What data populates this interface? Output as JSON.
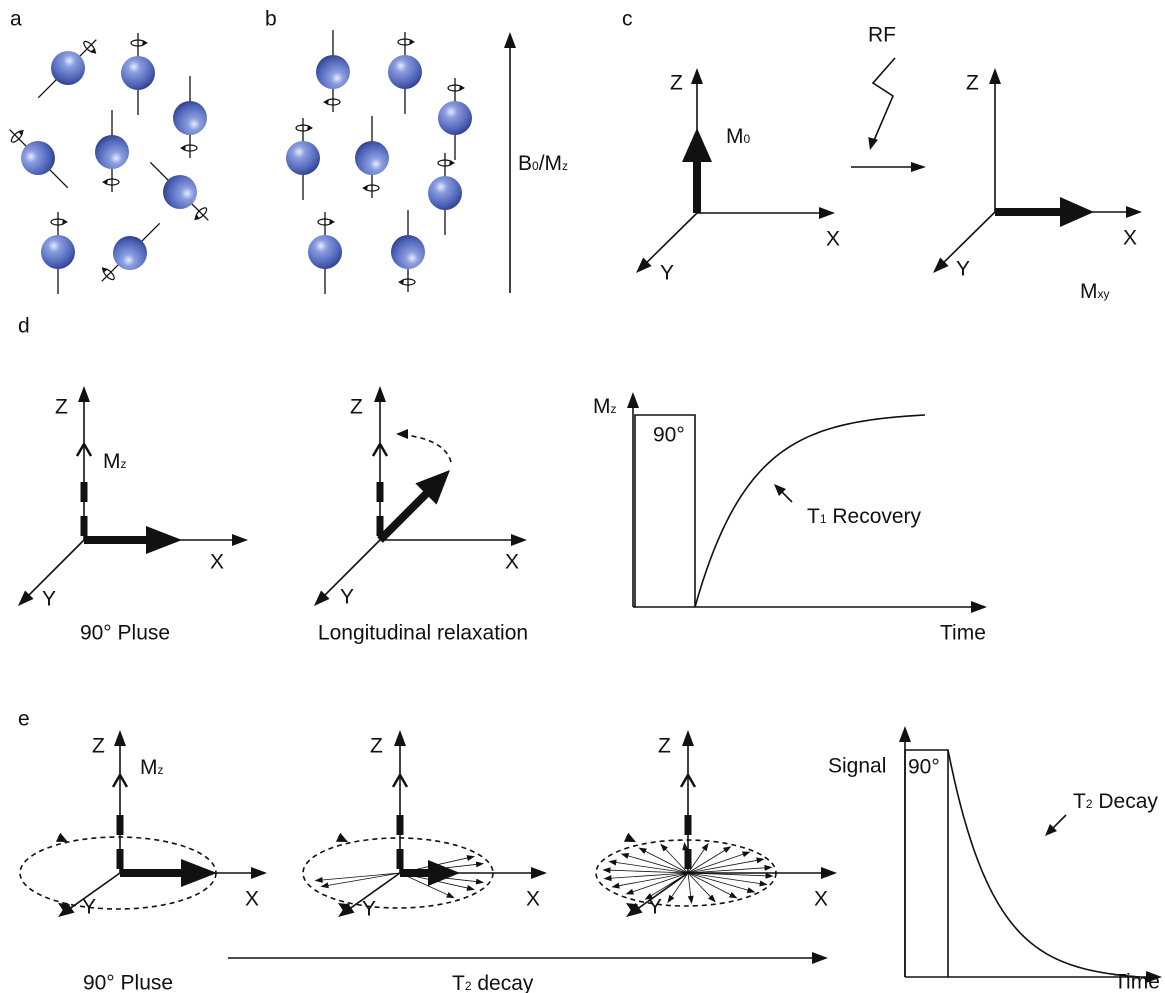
{
  "a": {
    "label": "a"
  },
  "b": {
    "label": "b",
    "axis_label": [
      {
        "text": "B",
        "sub": "0"
      },
      {
        "text": "/M",
        "sub": "z"
      }
    ]
  },
  "c": {
    "label": "c",
    "pulse": "RF",
    "before": {
      "z": "Z",
      "x": "X",
      "y": "Y",
      "vector": {
        "text": "M",
        "sub": "0"
      }
    },
    "after": {
      "z": "Z",
      "x": "X",
      "y": "Y",
      "vector": {
        "text": "M",
        "sub": "xy"
      }
    }
  },
  "d": {
    "label": "d",
    "pulse_state": {
      "z": "Z",
      "x": "X",
      "y": "Y",
      "vector": {
        "text": "M",
        "sub": "z"
      },
      "caption": "90° Pluse"
    },
    "relaxation_state": {
      "z": "Z",
      "x": "X",
      "y": "Y",
      "caption": "Longitudinal relaxation"
    },
    "graph": {
      "y_label": {
        "text": "M",
        "sub": "z"
      },
      "pulse_label": "90°",
      "curve_label": {
        "text": "T",
        "sub": "1",
        "suffix": " Recovery"
      },
      "x_label": "Time"
    }
  },
  "e": {
    "label": "e",
    "states": [
      {
        "z": "Z",
        "x": "X",
        "y": "Y",
        "vector": {
          "text": "M",
          "sub": "z"
        },
        "caption": "90° Pluse"
      },
      {
        "z": "Z",
        "x": "X",
        "y": "Y"
      },
      {
        "z": "Z",
        "x": "X",
        "y": "Y"
      }
    ],
    "timeline_label": {
      "text": "T",
      "sub": "2",
      "suffix": " decay"
    },
    "graph": {
      "y_label": "Signal",
      "pulse_label": "90°",
      "curve_label": {
        "text": "T",
        "sub": "2",
        "suffix": " Decay"
      },
      "x_label": "Time"
    }
  }
}
